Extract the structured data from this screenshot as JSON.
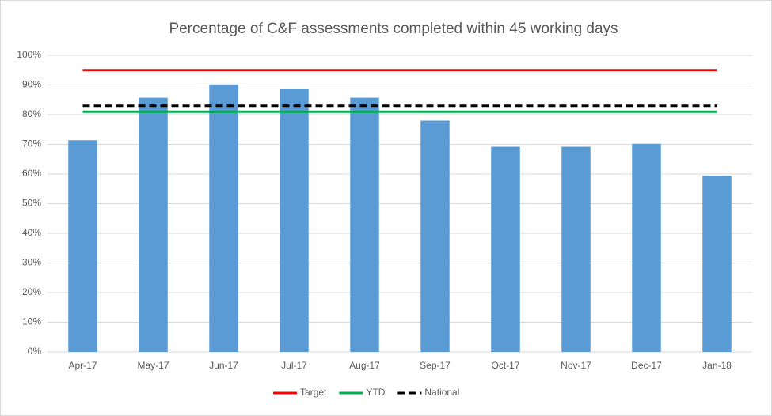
{
  "chart_data": {
    "type": "bar",
    "title": "Percentage of C&F assessments completed within 45 working days",
    "categories": [
      "Apr-17",
      "May-17",
      "Jun-17",
      "Jul-17",
      "Aug-17",
      "Sep-17",
      "Oct-17",
      "Nov-17",
      "Dec-17",
      "Jan-18"
    ],
    "series": [
      {
        "type": "bar",
        "color": "#5b9bd5",
        "values": [
          71.4,
          85.7,
          90.2,
          88.8,
          85.7,
          78,
          69.2,
          69.2,
          70.2,
          59.4
        ]
      },
      {
        "type": "line",
        "name": "Target",
        "color": "#ff0000",
        "values": [
          95,
          95,
          95,
          95,
          95,
          95,
          95,
          95,
          95,
          95
        ]
      },
      {
        "type": "line",
        "name": "YTD",
        "color": "#00b050",
        "values": [
          81,
          81,
          81,
          81,
          81,
          81,
          81,
          81,
          81,
          81
        ]
      },
      {
        "type": "line",
        "name": "National",
        "color": "#000000",
        "dashed": true,
        "values": [
          83,
          83,
          83,
          83,
          83,
          83,
          83,
          83,
          83,
          83
        ]
      }
    ],
    "ylim": [
      0,
      100
    ],
    "yticks": [
      {
        "value": 0,
        "label": "0%"
      },
      {
        "value": 10,
        "label": "10%"
      },
      {
        "value": 20,
        "label": "20%"
      },
      {
        "value": 30,
        "label": "30%"
      },
      {
        "value": 40,
        "label": "40%"
      },
      {
        "value": 50,
        "label": "50%"
      },
      {
        "value": 60,
        "label": "60%"
      },
      {
        "value": 70,
        "label": "70%"
      },
      {
        "value": 80,
        "label": "80%"
      },
      {
        "value": 90,
        "label": "90%"
      },
      {
        "value": 100,
        "label": "100%"
      }
    ],
    "grid": true,
    "legend": "bottom"
  }
}
